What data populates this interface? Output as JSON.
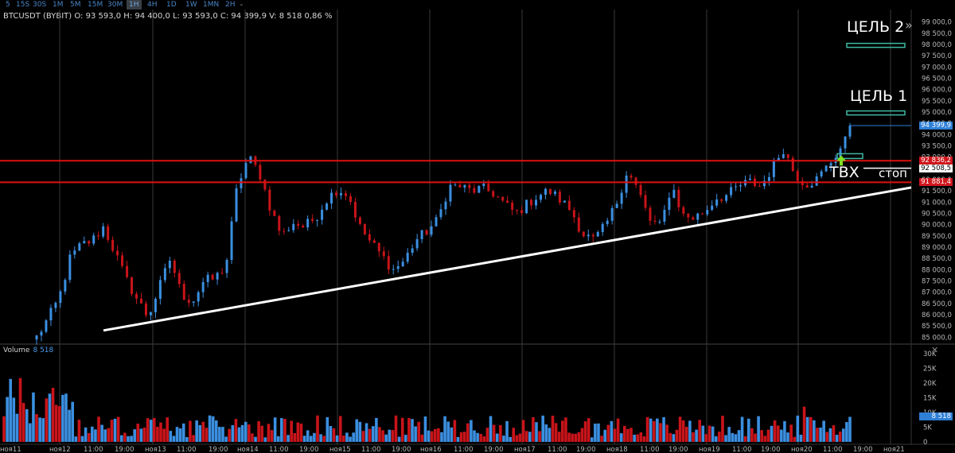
{
  "timeframes": [
    "5",
    "15S",
    "30S",
    "1M",
    "5M",
    "15M",
    "30M",
    "1H",
    "4H",
    "1D",
    "1W",
    "1MN",
    "2H"
  ],
  "active_timeframe": "1H",
  "more_icon": "chevron-down-icon",
  "ohlc_text": "BTCUSDT (BYBIT) O: 93 593,0 H: 94 400,0 L: 93 593,0 C: 94 399,9 V: 8 518 0,86 %",
  "price_axis": [
    "99 000,0",
    "98 500,0",
    "98 000,0",
    "97 500,0",
    "97 000,0",
    "96 500,0",
    "96 000,0",
    "95 500,0",
    "95 000,0",
    "94 500,0",
    "94 000,0",
    "93 500,0",
    "93 000,0",
    "92 500,0",
    "92 000,0",
    "91 500,0",
    "91 000,0",
    "90 500,0",
    "90 000,0",
    "89 500,0",
    "89 000,0",
    "88 500,0",
    "88 000,0",
    "87 500,0",
    "87 000,0",
    "86 500,0",
    "86 000,0",
    "85 500,0",
    "85 000,0"
  ],
  "price_tags": [
    {
      "text": "94 399,9",
      "color": "#2f7fd6"
    },
    {
      "text": "92 836,2",
      "color": "#d0161c"
    },
    {
      "text": "92 508,5",
      "color": "#ffffff"
    },
    {
      "text": "91 881,4",
      "color": "#d0161c"
    }
  ],
  "volume_axis": [
    "30K",
    "25K",
    "20K",
    "15K",
    "10K",
    "5K",
    "0"
  ],
  "volume_tag": "8 518",
  "volume_label": "Volume",
  "volume_value": "8 518",
  "time_labels": [
    "ноя11",
    "ноя12",
    "11:00",
    "19:00",
    "ноя13",
    "11:00",
    "19:00",
    "ноя14",
    "11:00",
    "19:00",
    "ноя15",
    "11:00",
    "19:00",
    "ноя16",
    "11:00",
    "19:00",
    "ноя17",
    "11:00",
    "19:00",
    "ноя18",
    "11:00",
    "19:00",
    "ноя19",
    "11:00",
    "19:00",
    "ноя20",
    "11:00",
    "19:00",
    "ноя21"
  ],
  "annotations": {
    "target2": "ЦЕЛЬ 2",
    "target1": "ЦЕЛЬ 1",
    "entry": "ТВХ",
    "stop": "стоп"
  },
  "colors": {
    "bull": "#3b8fe0",
    "bear": "#c8141a",
    "level": "#e01010",
    "trendline": "#ffffff",
    "target_box": "#3fb9a0",
    "entry_arrow": "#7fe020",
    "grid": "#2a2a2a"
  },
  "chart_data": {
    "type": "candlestick",
    "symbol": "BTCUSDT (BYBIT)",
    "timeframe": "1H",
    "ylim": [
      84800,
      99200
    ],
    "levels": [
      92836.2,
      91881.4
    ],
    "stop_level": 92508.5,
    "last_price": 94399.9,
    "targets": [
      {
        "name": "ЦЕЛЬ 1",
        "price": 95000
      },
      {
        "name": "ЦЕЛЬ 2",
        "price": 97900
      }
    ],
    "trendline": [
      {
        "from_price": 85300
      },
      {
        "to_price": 91650
      }
    ],
    "anchors": [
      85000,
      85800,
      86700,
      88500,
      89100,
      89300,
      89900,
      88800,
      87600,
      86700,
      85900,
      87200,
      88500,
      86900,
      86600,
      87500,
      87600,
      88200,
      91700,
      93000,
      92300,
      90700,
      89500,
      90100,
      89900,
      90300,
      91100,
      91600,
      91300,
      89900,
      89200,
      88600,
      88000,
      88400,
      89300,
      89700,
      90200,
      91700,
      91700,
      91500,
      91600,
      91400,
      90900,
      90500,
      90900,
      91300,
      91500,
      91100,
      90600,
      89600,
      89300,
      89900,
      90900,
      92400,
      91500,
      90200,
      89900,
      91800,
      90400,
      90300,
      90600,
      91200,
      91300,
      91700,
      91900,
      91700,
      92500,
      93400,
      92300,
      91800,
      92000,
      92600,
      93300,
      94000
    ]
  }
}
